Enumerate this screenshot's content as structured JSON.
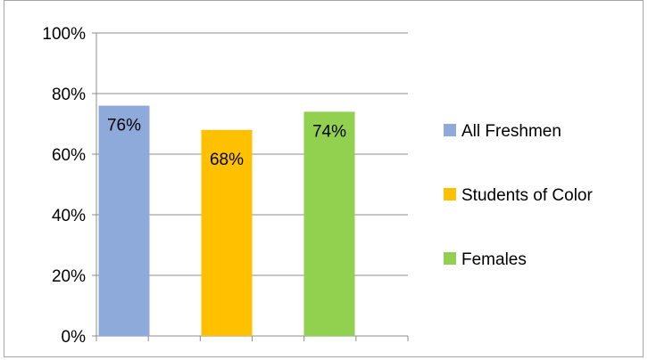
{
  "chart_data": {
    "type": "bar",
    "categories": [
      "All Freshmen",
      "Students of Color",
      "Females"
    ],
    "values": [
      76,
      68,
      74
    ],
    "data_labels": [
      "76%",
      "68%",
      "74%"
    ],
    "colors": [
      "#8eaadb",
      "#ffc000",
      "#92d050"
    ],
    "ylim": [
      0,
      100
    ],
    "yticks": [
      0,
      20,
      40,
      60,
      80,
      100
    ],
    "ytick_labels": [
      "0%",
      "20%",
      "40%",
      "60%",
      "80%",
      "100%"
    ],
    "grid": true,
    "legend": "right",
    "legend_entries": [
      "All Freshmen",
      "Students of Color",
      "Females"
    ]
  }
}
